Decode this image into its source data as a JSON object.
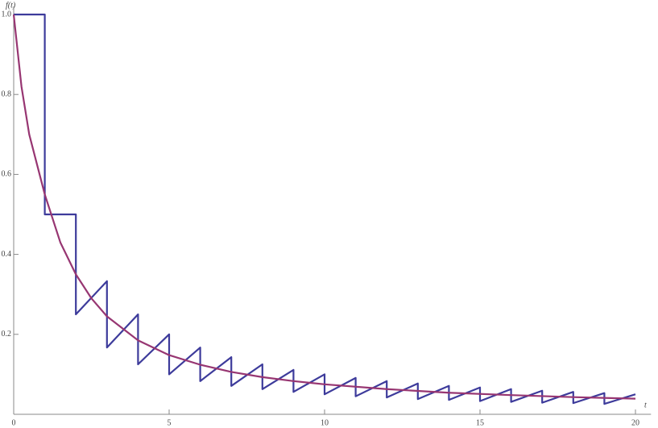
{
  "chart_data": {
    "type": "line",
    "x_label": "t",
    "y_label": "f(t)",
    "xlim": [
      0,
      20.5
    ],
    "ylim": [
      0,
      1.02
    ],
    "xticks": [
      0,
      5,
      10,
      15,
      20
    ],
    "yticks": [
      0.2,
      0.4,
      0.6,
      0.8,
      {
        "value": 1,
        "label": "1.0"
      }
    ],
    "series": [
      {
        "color": "#3d3b9b",
        "x": [
          0,
          1,
          1,
          2,
          2,
          3,
          3,
          4,
          4,
          5,
          5,
          6,
          6,
          7,
          7,
          8,
          8,
          9,
          9,
          10,
          10,
          11,
          11,
          12,
          12,
          13,
          13,
          14,
          14,
          15,
          15,
          16,
          16,
          17,
          17,
          18,
          18,
          19,
          19,
          20
        ],
        "values": [
          1,
          1,
          0.5,
          0.5,
          0.25,
          0.333,
          0.167,
          0.25,
          0.125,
          0.2,
          0.1,
          0.167,
          0.083,
          0.143,
          0.071,
          0.125,
          0.063,
          0.111,
          0.056,
          0.1,
          0.05,
          0.091,
          0.045,
          0.083,
          0.042,
          0.077,
          0.038,
          0.071,
          0.036,
          0.067,
          0.033,
          0.063,
          0.031,
          0.059,
          0.029,
          0.056,
          0.028,
          0.053,
          0.026,
          0.05
        ]
      },
      {
        "color": "#973672",
        "x": [
          0,
          0.25,
          0.5,
          1,
          1.5,
          2,
          2.5,
          3,
          4,
          5,
          6,
          7,
          8,
          9,
          10,
          12,
          14,
          16,
          18,
          20
        ],
        "values": [
          1,
          0.82,
          0.7,
          0.55,
          0.43,
          0.35,
          0.29,
          0.245,
          0.185,
          0.148,
          0.124,
          0.106,
          0.093,
          0.083,
          0.075,
          0.063,
          0.054,
          0.048,
          0.043,
          0.039
        ]
      }
    ]
  }
}
